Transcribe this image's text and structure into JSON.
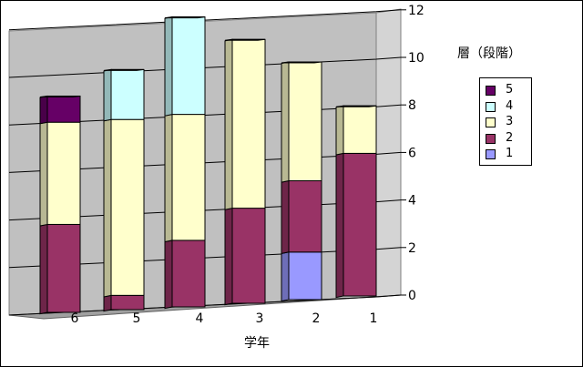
{
  "chart_data": {
    "type": "bar",
    "stacked": true,
    "three_d": true,
    "categories": [
      "6",
      "5",
      "4",
      "3",
      "2",
      "1"
    ],
    "series": [
      {
        "name": "1",
        "color": "#9999ff",
        "values": [
          0,
          0,
          0,
          0,
          2,
          0
        ]
      },
      {
        "name": "2",
        "color": "#993366",
        "values": [
          3.7,
          0.6,
          2.8,
          4,
          3,
          6
        ]
      },
      {
        "name": "3",
        "color": "#ffffcc",
        "values": [
          4.3,
          7.4,
          5.3,
          7.1,
          5,
          2
        ]
      },
      {
        "name": "4",
        "color": "#ccffff",
        "values": [
          0,
          2.1,
          4.1,
          0,
          0,
          0
        ]
      },
      {
        "name": "5",
        "color": "#660066",
        "values": [
          1.1,
          0,
          0,
          0,
          0,
          0
        ]
      }
    ],
    "yticks": [
      "0",
      "2",
      "4",
      "6",
      "8",
      "10",
      "12"
    ],
    "ylim": [
      0,
      12
    ],
    "xlabel": "学年",
    "ylabel": "",
    "legend": {
      "title": "層（段階）",
      "position": "right",
      "entries": [
        "5",
        "4",
        "3",
        "2",
        "1"
      ]
    },
    "grid": true,
    "colors": {
      "wall": "#c0c0c0",
      "floor": "#a0a0a0",
      "gridline": "#000000"
    }
  }
}
